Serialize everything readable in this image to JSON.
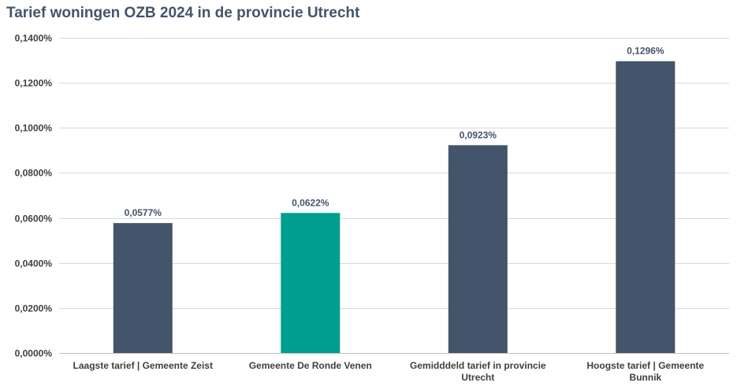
{
  "chart_data": {
    "type": "bar",
    "title": "Tarief woningen OZB 2024 in de provincie Utrecht",
    "xlabel": "",
    "ylabel": "",
    "ylim": [
      0,
      0.14
    ],
    "y_ticks": [
      0,
      0.02,
      0.04,
      0.06,
      0.08,
      0.1,
      0.12,
      0.14
    ],
    "y_tick_labels": [
      "0,0000%",
      "0,0200%",
      "0,0400%",
      "0,0600%",
      "0,0800%",
      "0,1000%",
      "0,1200%",
      "0,1400%"
    ],
    "grid": true,
    "legend": "none",
    "categories": [
      [
        "Laagste tarief | Gemeente Zeist"
      ],
      [
        "Gemeente De Ronde Venen"
      ],
      [
        "Gemidddeld tarief in provincie",
        "Utrecht"
      ],
      [
        "Hoogste tarief | Gemeente",
        "Bunnik"
      ]
    ],
    "values": [
      0.0577,
      0.0622,
      0.0923,
      0.1296
    ],
    "data_labels": [
      "0,0577%",
      "0,0622%",
      "0,0923%",
      "0,1296%"
    ],
    "colors": [
      "#44546a",
      "#009e8f",
      "#44546a",
      "#44546a"
    ],
    "grid_color": "#d9d9d9",
    "axis_color": "#bfbfbf"
  }
}
